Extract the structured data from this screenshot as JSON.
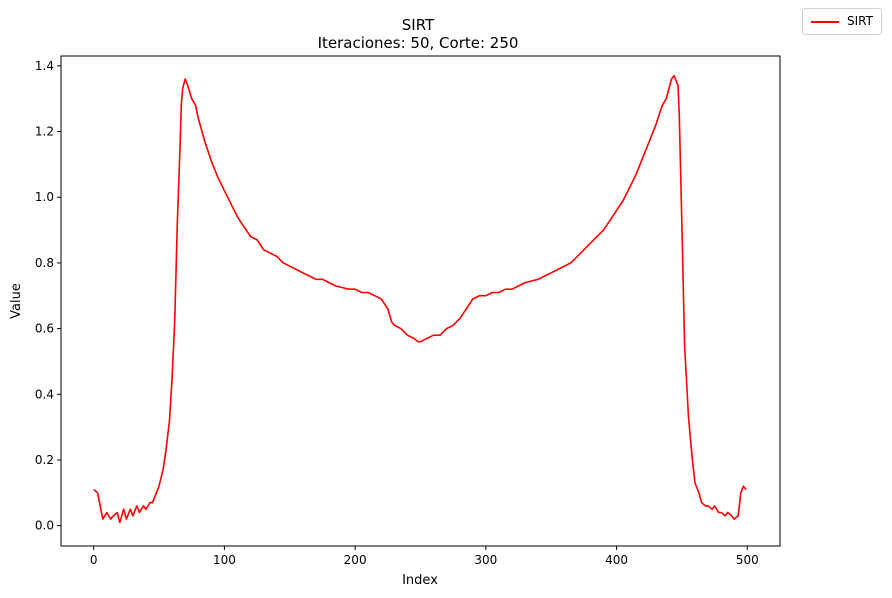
{
  "chart_data": {
    "type": "line",
    "title": "SIRT",
    "subtitle": "Iteraciones: 50, Corte: 250",
    "xlabel": "Index",
    "ylabel": "Value",
    "xlim": [
      -25,
      525
    ],
    "ylim": [
      -0.062,
      1.43
    ],
    "xticks": [
      0,
      100,
      200,
      300,
      400,
      500
    ],
    "yticks": [
      0.0,
      0.2,
      0.4,
      0.6,
      0.8,
      1.0,
      1.2,
      1.4
    ],
    "grid": false,
    "legend_position": "outside-top-right",
    "series": [
      {
        "name": "SIRT",
        "color": "#ff0000",
        "x": [
          0,
          3,
          5,
          7,
          10,
          13,
          15,
          18,
          20,
          23,
          25,
          28,
          30,
          33,
          35,
          38,
          40,
          43,
          45,
          48,
          50,
          53,
          55,
          58,
          60,
          62,
          64,
          66,
          67,
          68,
          70,
          72,
          75,
          78,
          80,
          85,
          90,
          95,
          100,
          105,
          110,
          115,
          120,
          125,
          130,
          135,
          140,
          145,
          150,
          155,
          160,
          165,
          170,
          175,
          180,
          185,
          190,
          195,
          200,
          205,
          210,
          215,
          220,
          225,
          228,
          230,
          235,
          240,
          245,
          248,
          250,
          255,
          260,
          265,
          270,
          275,
          280,
          285,
          290,
          295,
          300,
          305,
          310,
          315,
          320,
          325,
          330,
          335,
          340,
          345,
          350,
          355,
          360,
          365,
          370,
          375,
          380,
          385,
          390,
          395,
          400,
          405,
          410,
          415,
          420,
          425,
          430,
          435,
          438,
          440,
          442,
          444,
          445,
          447,
          448,
          450,
          452,
          455,
          458,
          460,
          463,
          465,
          468,
          470,
          473,
          475,
          478,
          480,
          483,
          485,
          488,
          490,
          493,
          495,
          497,
          499
        ],
        "values": [
          0.11,
          0.1,
          0.06,
          0.02,
          0.04,
          0.02,
          0.03,
          0.04,
          0.01,
          0.05,
          0.02,
          0.05,
          0.03,
          0.06,
          0.04,
          0.06,
          0.05,
          0.07,
          0.07,
          0.1,
          0.12,
          0.17,
          0.22,
          0.32,
          0.45,
          0.62,
          0.92,
          1.15,
          1.28,
          1.33,
          1.36,
          1.34,
          1.3,
          1.28,
          1.24,
          1.17,
          1.11,
          1.06,
          1.02,
          0.98,
          0.94,
          0.91,
          0.88,
          0.87,
          0.84,
          0.83,
          0.82,
          0.8,
          0.79,
          0.78,
          0.77,
          0.76,
          0.75,
          0.75,
          0.74,
          0.73,
          0.725,
          0.72,
          0.72,
          0.71,
          0.71,
          0.7,
          0.69,
          0.66,
          0.62,
          0.61,
          0.6,
          0.58,
          0.57,
          0.56,
          0.56,
          0.57,
          0.58,
          0.58,
          0.6,
          0.61,
          0.63,
          0.66,
          0.69,
          0.7,
          0.7,
          0.71,
          0.71,
          0.72,
          0.72,
          0.73,
          0.74,
          0.745,
          0.75,
          0.76,
          0.77,
          0.78,
          0.79,
          0.8,
          0.82,
          0.84,
          0.86,
          0.88,
          0.9,
          0.93,
          0.96,
          0.99,
          1.03,
          1.07,
          1.12,
          1.17,
          1.22,
          1.28,
          1.3,
          1.33,
          1.36,
          1.37,
          1.36,
          1.34,
          1.25,
          0.9,
          0.55,
          0.33,
          0.2,
          0.13,
          0.1,
          0.07,
          0.06,
          0.06,
          0.05,
          0.06,
          0.04,
          0.04,
          0.03,
          0.04,
          0.03,
          0.02,
          0.03,
          0.1,
          0.12,
          0.11
        ]
      }
    ]
  }
}
